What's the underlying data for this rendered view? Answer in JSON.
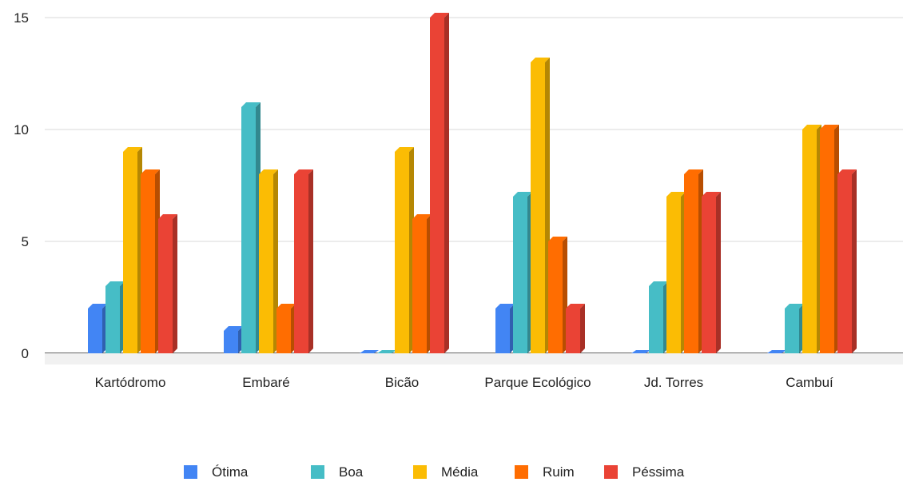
{
  "chart_data": {
    "type": "bar",
    "title": "",
    "xlabel": "",
    "ylabel": "",
    "ylim": [
      0,
      15
    ],
    "yticks": [
      0,
      5,
      10,
      15
    ],
    "grid": true,
    "legend_position": "bottom",
    "style": "3d",
    "categories": [
      "Kartódromo",
      "Embaré",
      "Bicão",
      "Parque Ecológico",
      "Jd. Torres",
      "Cambuí"
    ],
    "series": [
      {
        "name": "Ótima",
        "color": "#4285f4",
        "values": [
          2,
          1,
          0,
          2,
          0,
          0
        ]
      },
      {
        "name": "Boa",
        "color": "#46bdc6",
        "values": [
          3,
          11,
          0,
          7,
          3,
          2
        ]
      },
      {
        "name": "Média",
        "color": "#fbbc04",
        "values": [
          9,
          8,
          9,
          13,
          7,
          10
        ]
      },
      {
        "name": "Ruim",
        "color": "#ff6d01",
        "values": [
          8,
          2,
          6,
          5,
          8,
          10
        ]
      },
      {
        "name": "Péssima",
        "color": "#ea4335",
        "values": [
          6,
          8,
          15,
          2,
          7,
          8
        ]
      }
    ]
  }
}
